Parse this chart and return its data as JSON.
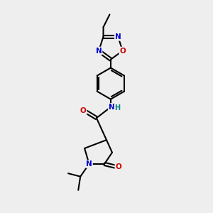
{
  "bg_color": "#eeeeee",
  "atom_colors": {
    "C": "#000000",
    "N": "#0000cc",
    "O": "#cc0000",
    "H": "#008080"
  },
  "bond_color": "#000000",
  "bond_width": 1.5,
  "font_size_atom": 7.5,
  "figsize": [
    3.0,
    3.0
  ],
  "dpi": 100
}
